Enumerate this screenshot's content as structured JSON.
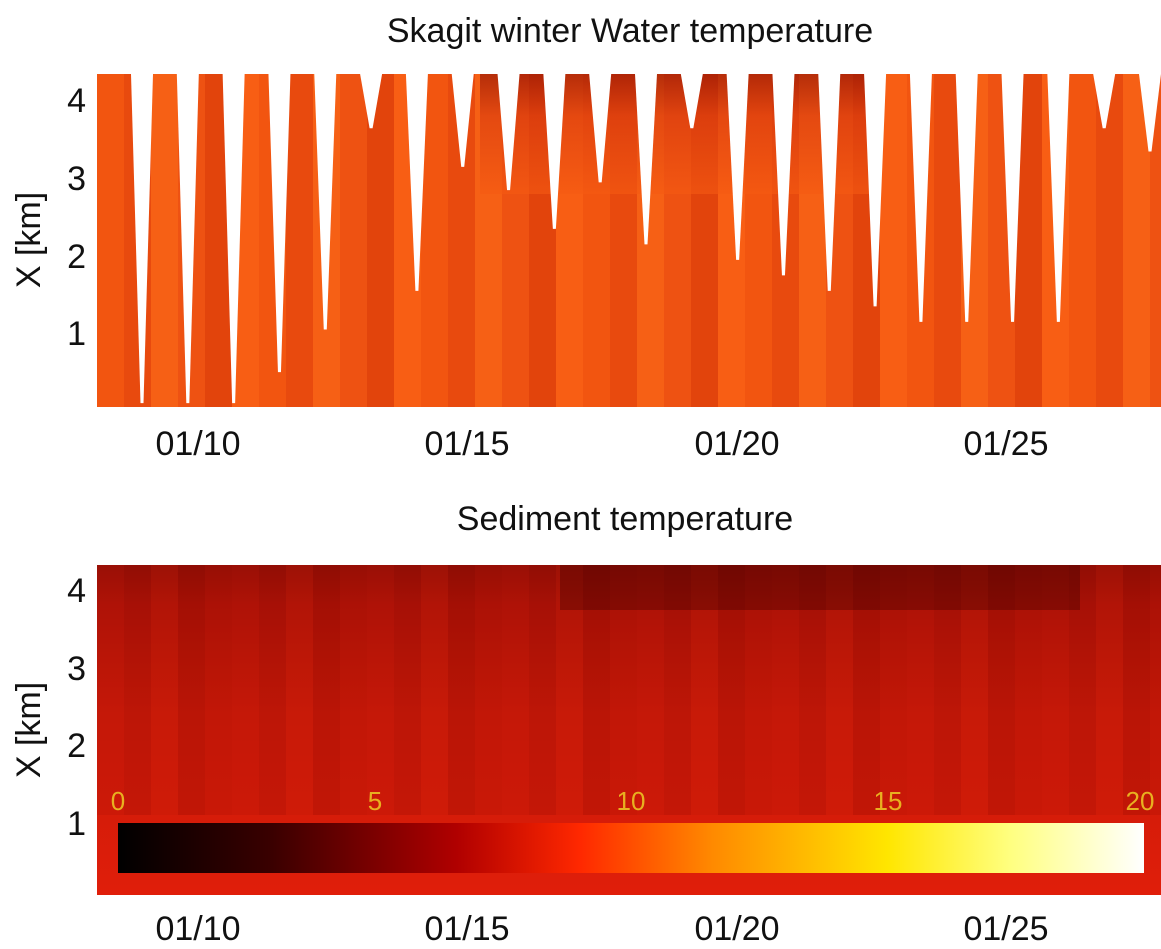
{
  "chart_data": [
    {
      "type": "heatmap",
      "title": "Skagit winter Water temperature",
      "ylabel": "X [km]",
      "xlabel": "",
      "x_ticks": [
        "01/10",
        "01/15",
        "01/20",
        "01/25"
      ],
      "y_ticks": [
        "1",
        "2",
        "3",
        "4"
      ],
      "xlim": [
        "01/08",
        "01/28"
      ],
      "ylim": [
        0,
        4.3
      ],
      "colormap": "hot",
      "description_values": {
        "typical_temperature_c": 8,
        "dry_gap_bottom_km": [
          0.05,
          0.05,
          0.05,
          0.45,
          1.0,
          3.6,
          1.5,
          3.1,
          2.8,
          2.3,
          2.9,
          2.1,
          3.6,
          1.9,
          1.7,
          1.5,
          1.3,
          1.1,
          1.1,
          1.1,
          1.1,
          3.6,
          3.3
        ]
      }
    },
    {
      "type": "heatmap",
      "title": "Sediment temperature",
      "ylabel": "X [km]",
      "xlabel": "",
      "x_ticks": [
        "01/10",
        "01/15",
        "01/20",
        "01/25"
      ],
      "y_ticks": [
        "1",
        "2",
        "3",
        "4"
      ],
      "xlim": [
        "01/08",
        "01/28"
      ],
      "ylim": [
        0,
        4.3
      ],
      "colormap": "hot",
      "colorbar": {
        "range": [
          0,
          20
        ],
        "ticks": [
          "0",
          "5",
          "10",
          "15",
          "20"
        ]
      }
    }
  ],
  "colors": {
    "water_base": "#f55a12",
    "sediment_base": "#c81808",
    "colorbar_stops": [
      "#000000",
      "#5a0000",
      "#d20000",
      "#ff4600",
      "#ffa000",
      "#ffff00",
      "#ffffff"
    ]
  }
}
